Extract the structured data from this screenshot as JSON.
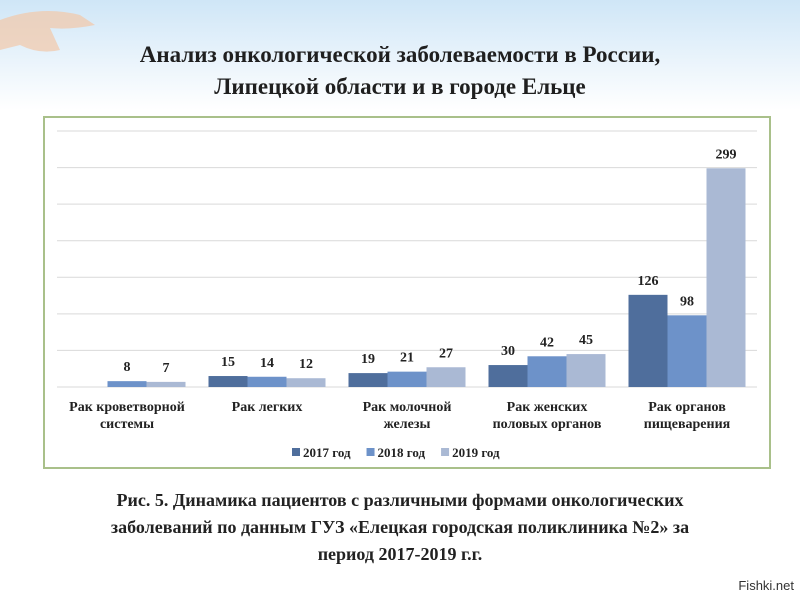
{
  "header": {
    "title": [
      "Анализ онкологической заболеваемости в России,",
      "Липецкой области и в городе Ельце"
    ]
  },
  "chart_data": {
    "type": "bar",
    "categories": [
      "Рак кроветворной системы",
      "Рак легких",
      "Рак молочной железы",
      "Рак женских половых органов",
      "Рак органов пищеварения"
    ],
    "series": [
      {
        "name": "2017 год",
        "color": "#4f6e9c",
        "values": [
          null,
          15,
          19,
          30,
          126
        ]
      },
      {
        "name": "2018 год",
        "color": "#6d92c9",
        "values": [
          8,
          14,
          21,
          42,
          98
        ]
      },
      {
        "name": "2019 год",
        "color": "#aab9d4",
        "values": [
          7,
          12,
          27,
          45,
          299
        ]
      }
    ],
    "ylim": [
      0,
      350
    ],
    "yticks": [
      0,
      50,
      100,
      150,
      200,
      250,
      300,
      350
    ],
    "grid": true
  },
  "caption": [
    "Рис. 5. Динамика пациентов с различными формами онкологических",
    "заболеваний по данным ГУЗ «Елецкая городская поликлиника №2» за",
    "период 2017-2019 г.г."
  ],
  "watermark": "Fishki.net"
}
